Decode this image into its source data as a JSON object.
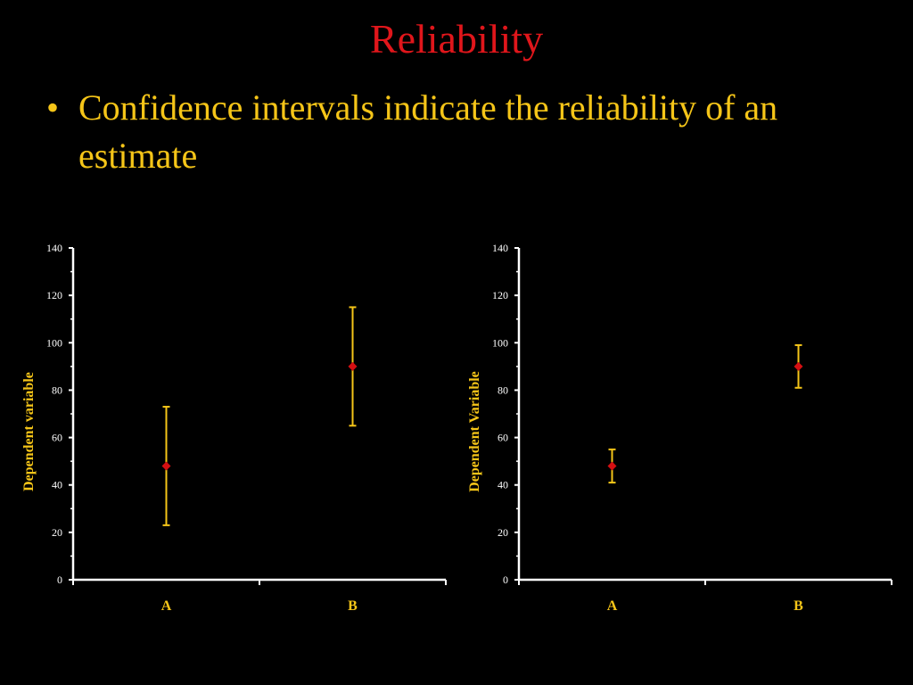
{
  "slide": {
    "title": "Reliability",
    "bullet_marker": "•",
    "bullet_text": "Confidence intervals indicate the reliability of an estimate"
  },
  "colors": {
    "title": "#e0161b",
    "text": "#f5c518",
    "axis": "#ffffff",
    "marker": "#d40f12",
    "errorbar": "#f5c518"
  },
  "chart_data": [
    {
      "type": "scatter",
      "categories": [
        "A",
        "B"
      ],
      "values": [
        48,
        90
      ],
      "error_low": [
        23,
        65
      ],
      "error_high": [
        73,
        115
      ],
      "ylabel": "Dependent variable",
      "ylim": [
        0,
        140
      ],
      "yticks": [
        0,
        20,
        40,
        60,
        80,
        100,
        120,
        140
      ],
      "grid": false
    },
    {
      "type": "scatter",
      "categories": [
        "A",
        "B"
      ],
      "values": [
        48,
        90
      ],
      "error_low": [
        41,
        81
      ],
      "error_high": [
        55,
        99
      ],
      "ylabel": "Dependent Variable",
      "ylim": [
        0,
        140
      ],
      "yticks": [
        0,
        20,
        40,
        60,
        80,
        100,
        120,
        140
      ],
      "grid": false
    }
  ]
}
